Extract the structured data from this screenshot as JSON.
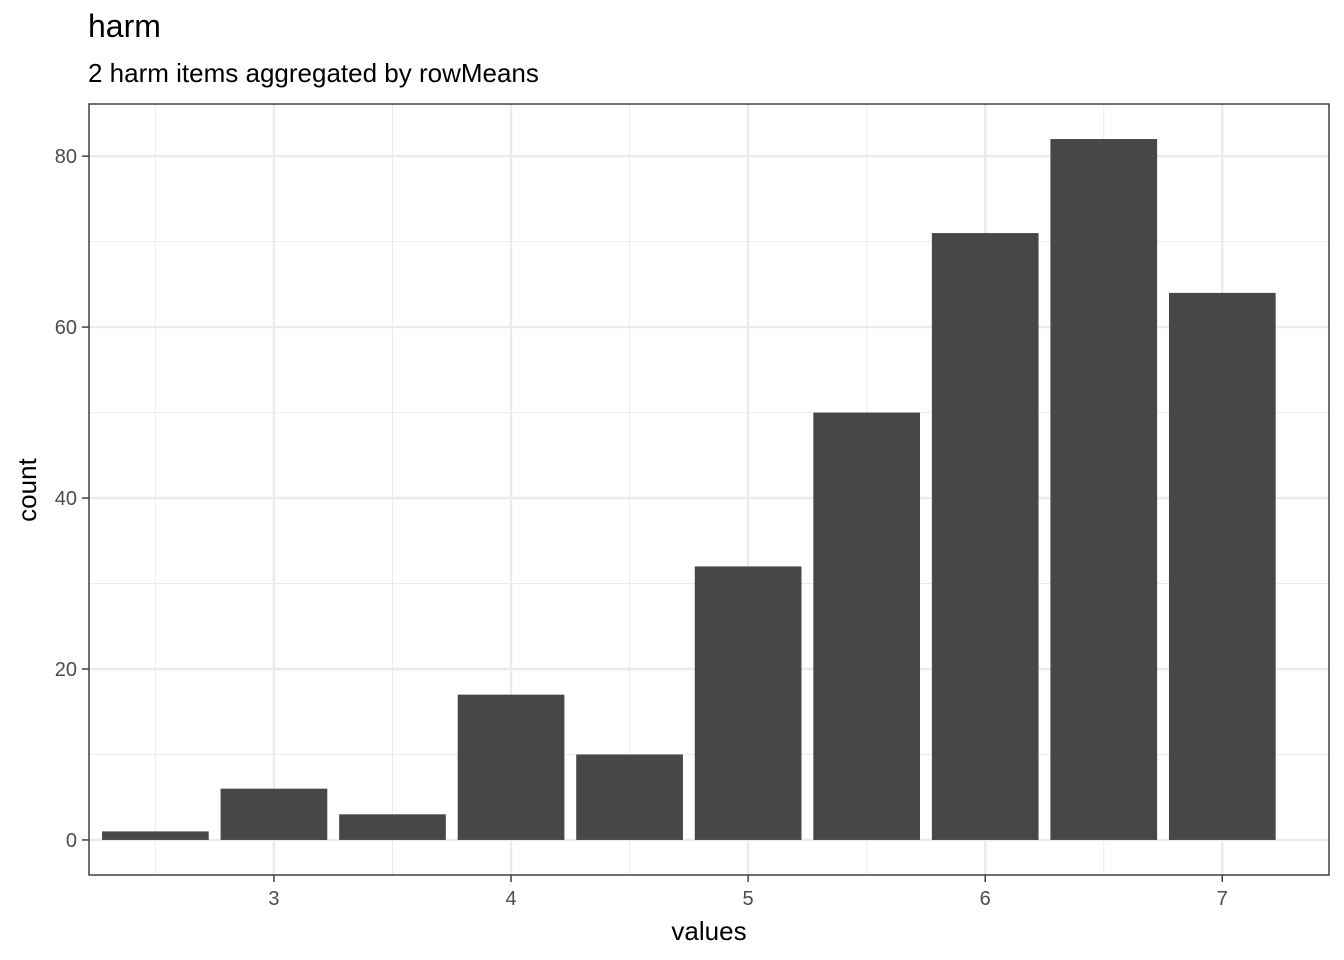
{
  "chart_data": {
    "type": "bar",
    "title": "harm",
    "subtitle": "2 harm items aggregated by rowMeans",
    "xlabel": "values",
    "ylabel": "count",
    "x": [
      2.5,
      3,
      3.5,
      4,
      4.5,
      5,
      5.5,
      6,
      6.5,
      7
    ],
    "values": [
      1,
      6,
      3,
      17,
      10,
      32,
      50,
      71,
      82,
      64
    ],
    "bar_width": 0.45,
    "xlim": [
      2.22,
      7.45
    ],
    "ylim": [
      -4.1,
      86.1
    ],
    "xticks": [
      3,
      4,
      5,
      6,
      7
    ],
    "xtick_labels": [
      "3",
      "4",
      "5",
      "6",
      "7"
    ],
    "yticks": [
      0,
      20,
      40,
      60,
      80
    ],
    "ytick_labels": [
      "0",
      "20",
      "40",
      "60",
      "80"
    ],
    "grid": true,
    "bar_color": "#474747"
  }
}
